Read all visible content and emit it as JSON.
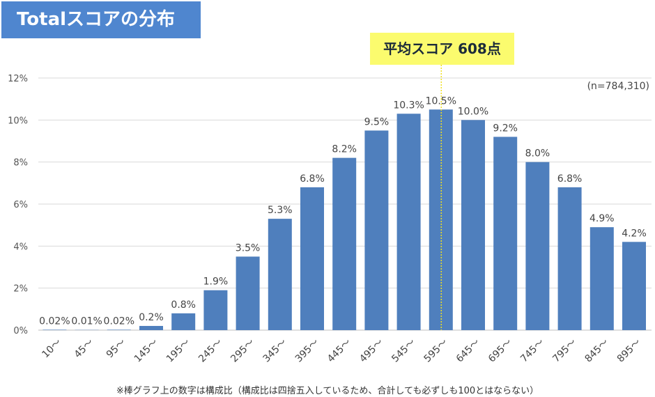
{
  "chart_data": {
    "type": "bar",
    "title": "Totalスコアの分布",
    "annotation": "平均スコア 608点",
    "mean_score": 608,
    "sample_size": "(n=784,310)",
    "footnote": "※棒グラフ上の数字は構成比（構成比は四捨五入しているため、合計しても必ずしも100とはならない）",
    "categories": [
      "10～",
      "45～",
      "95～",
      "145～",
      "195～",
      "245～",
      "295～",
      "345～",
      "395～",
      "445～",
      "495～",
      "545～",
      "595～",
      "645～",
      "695～",
      "745～",
      "795～",
      "845～",
      "895～"
    ],
    "values": [
      0.02,
      0.01,
      0.02,
      0.2,
      0.8,
      1.9,
      3.5,
      5.3,
      6.8,
      8.2,
      9.5,
      10.3,
      10.5,
      10.0,
      9.2,
      8.0,
      6.8,
      4.9,
      4.2
    ],
    "data_labels": [
      "0.02%",
      "0.01%",
      "0.02%",
      "0.2%",
      "0.8%",
      "1.9%",
      "3.5%",
      "5.3%",
      "6.8%",
      "8.2%",
      "9.5%",
      "10.3%",
      "10.5%",
      "10.0%",
      "9.2%",
      "8.0%",
      "6.8%",
      "4.9%",
      "4.2%"
    ],
    "y_ticks": [
      "0%",
      "2%",
      "4%",
      "6%",
      "8%",
      "10%",
      "12%"
    ],
    "ylim": [
      0,
      12
    ],
    "xlabel": "",
    "ylabel": "",
    "grid": true,
    "colors": {
      "bar": "#4f7fbd",
      "title_bg": "#4f86cf",
      "mean_box": "#fbfb6e",
      "mean_line": "#f0e020"
    }
  }
}
